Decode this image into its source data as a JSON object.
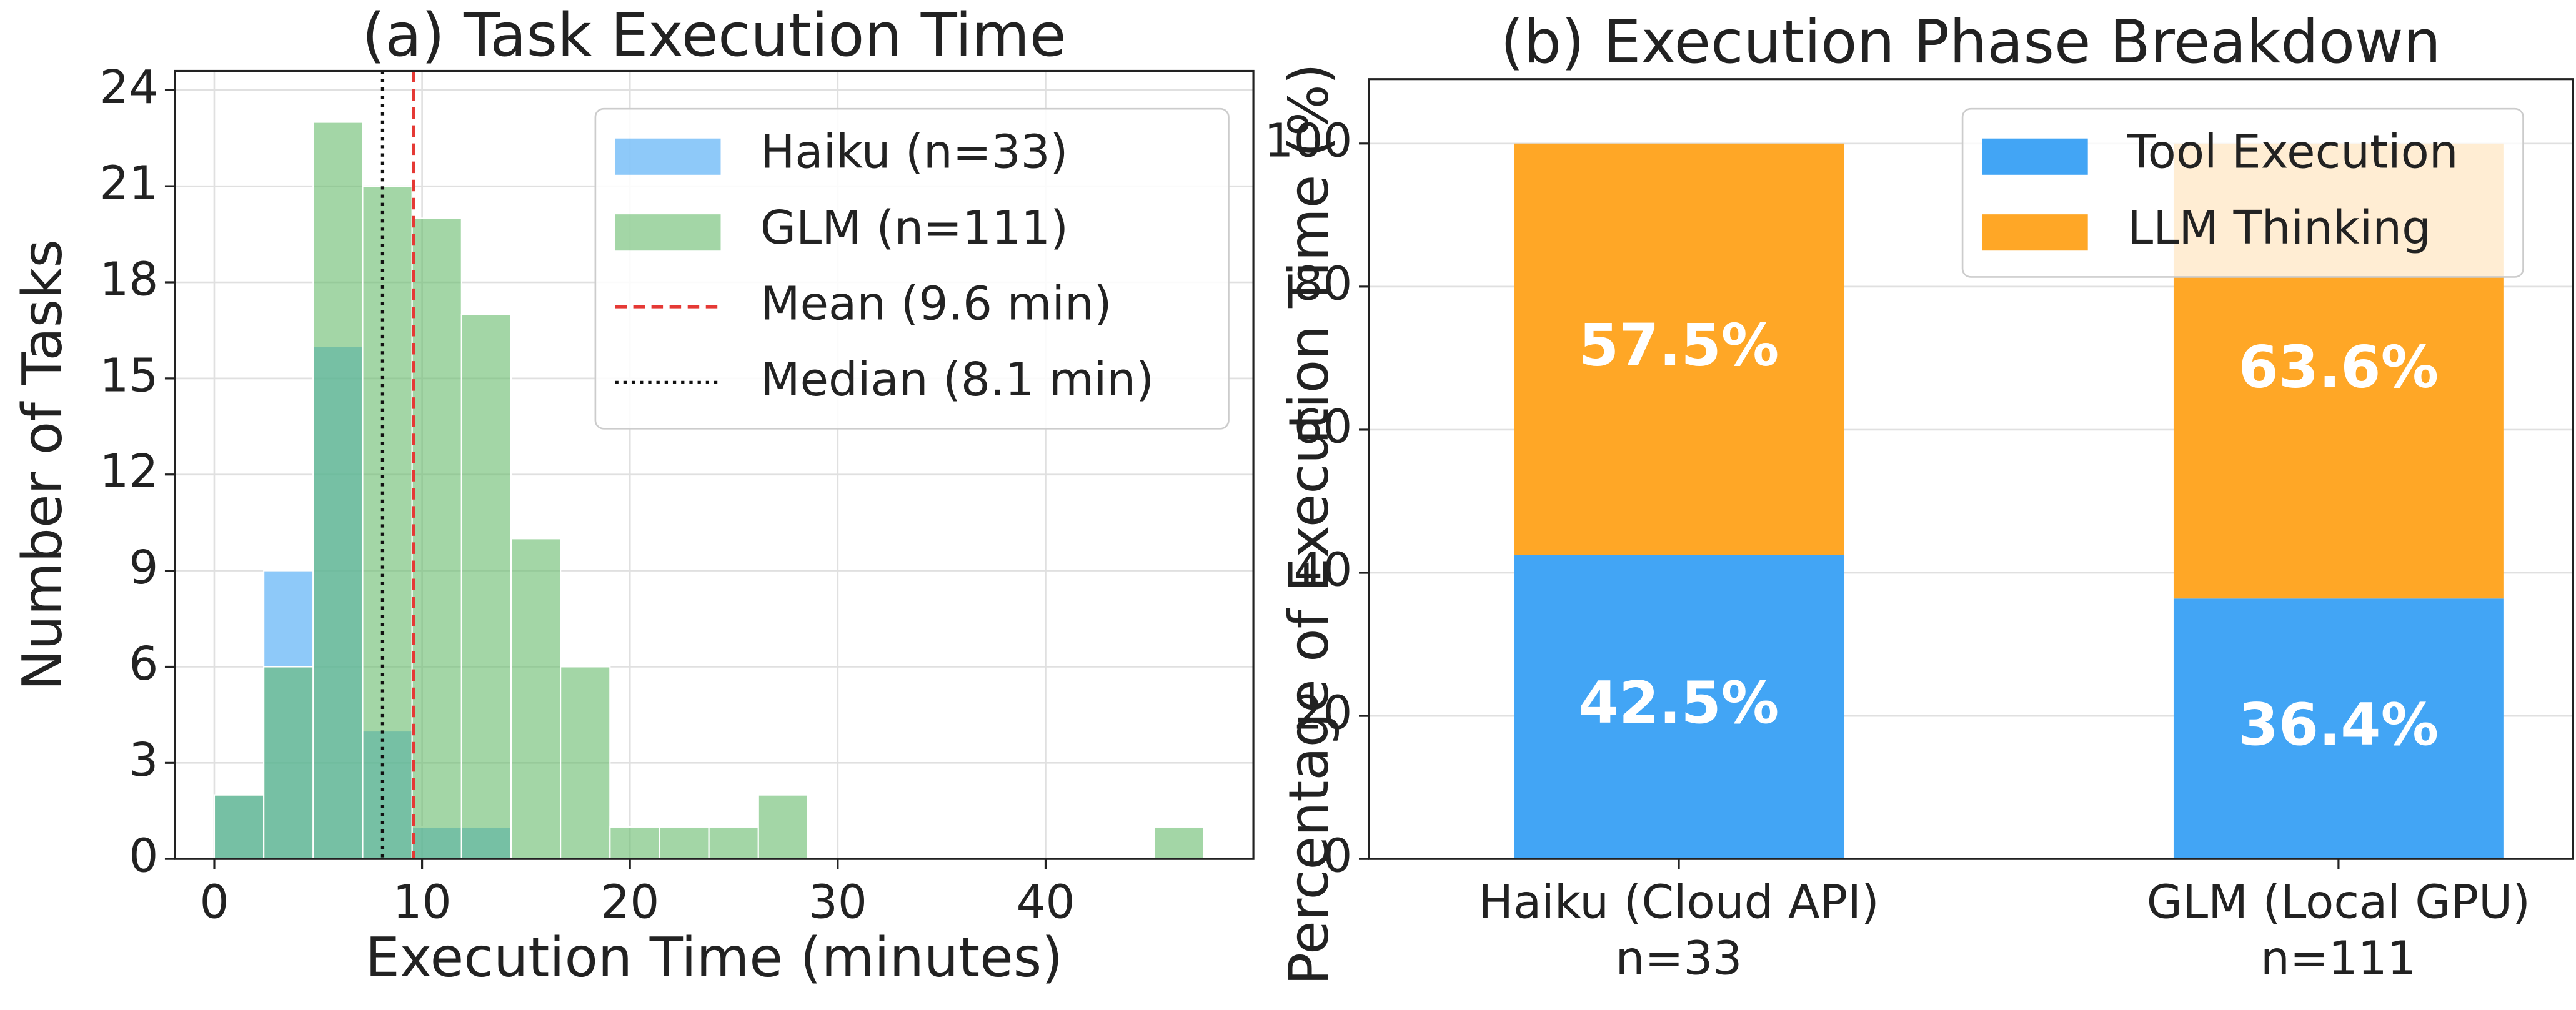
{
  "chart_data": [
    {
      "type": "histogram",
      "title": "(a) Task Execution Time",
      "x_label": "Execution Time (minutes)",
      "y_label": "Number of Tasks",
      "bins": [
        0,
        2.38,
        4.76,
        7.14,
        9.52,
        11.9,
        14.28,
        16.66,
        19.04,
        21.42,
        23.8,
        26.18,
        28.56,
        30.94,
        33.32,
        35.7,
        38.08,
        40.46,
        42.84,
        45.22,
        47.6
      ],
      "series": [
        {
          "name": "Haiku (n=33)",
          "color": "#42a5f5",
          "values": [
            2,
            9,
            16,
            4,
            1,
            1,
            0,
            0,
            0,
            0,
            0,
            0,
            0,
            0,
            0,
            0,
            0,
            0,
            0,
            0
          ]
        },
        {
          "name": "GLM (n=111)",
          "color": "#66bb6a",
          "values": [
            2,
            6,
            23,
            21,
            20,
            17,
            10,
            6,
            1,
            1,
            1,
            2,
            0,
            0,
            0,
            0,
            0,
            0,
            0,
            1
          ]
        }
      ],
      "vlines": [
        {
          "name": "Mean (9.6 min)",
          "value": 9.6,
          "color": "#e53935",
          "style": "dashed"
        },
        {
          "name": "Median (8.1 min)",
          "value": 8.1,
          "color": "#111111",
          "style": "dotted"
        }
      ],
      "xlim": [
        -1.9,
        50
      ],
      "xticks": [
        0,
        10,
        20,
        30,
        40
      ],
      "ylim": [
        0,
        24.6
      ],
      "yticks": [
        0,
        3,
        6,
        9,
        12,
        15,
        18,
        21,
        24
      ],
      "grid": true,
      "legend": "upper right"
    },
    {
      "type": "stacked_bar",
      "title": "(b) Execution Phase Breakdown",
      "y_label": "Percentage of Execution Time (%)",
      "categories": [
        "Haiku (Cloud API)",
        "GLM (Local GPU)"
      ],
      "category_sublabels": [
        "n=33",
        "n=111"
      ],
      "series": [
        {
          "name": "Tool Execution",
          "color": "#42a5f5",
          "values": [
            42.5,
            36.4
          ],
          "value_labels": [
            "42.5%",
            "36.4%"
          ]
        },
        {
          "name": "LLM Thinking",
          "color": "#ffa726",
          "values": [
            57.5,
            63.6
          ],
          "value_labels": [
            "57.5%",
            "63.6%"
          ]
        }
      ],
      "ylim": [
        0,
        109
      ],
      "yticks": [
        0,
        20,
        40,
        60,
        80,
        100
      ],
      "grid": true,
      "legend": "upper right"
    }
  ]
}
